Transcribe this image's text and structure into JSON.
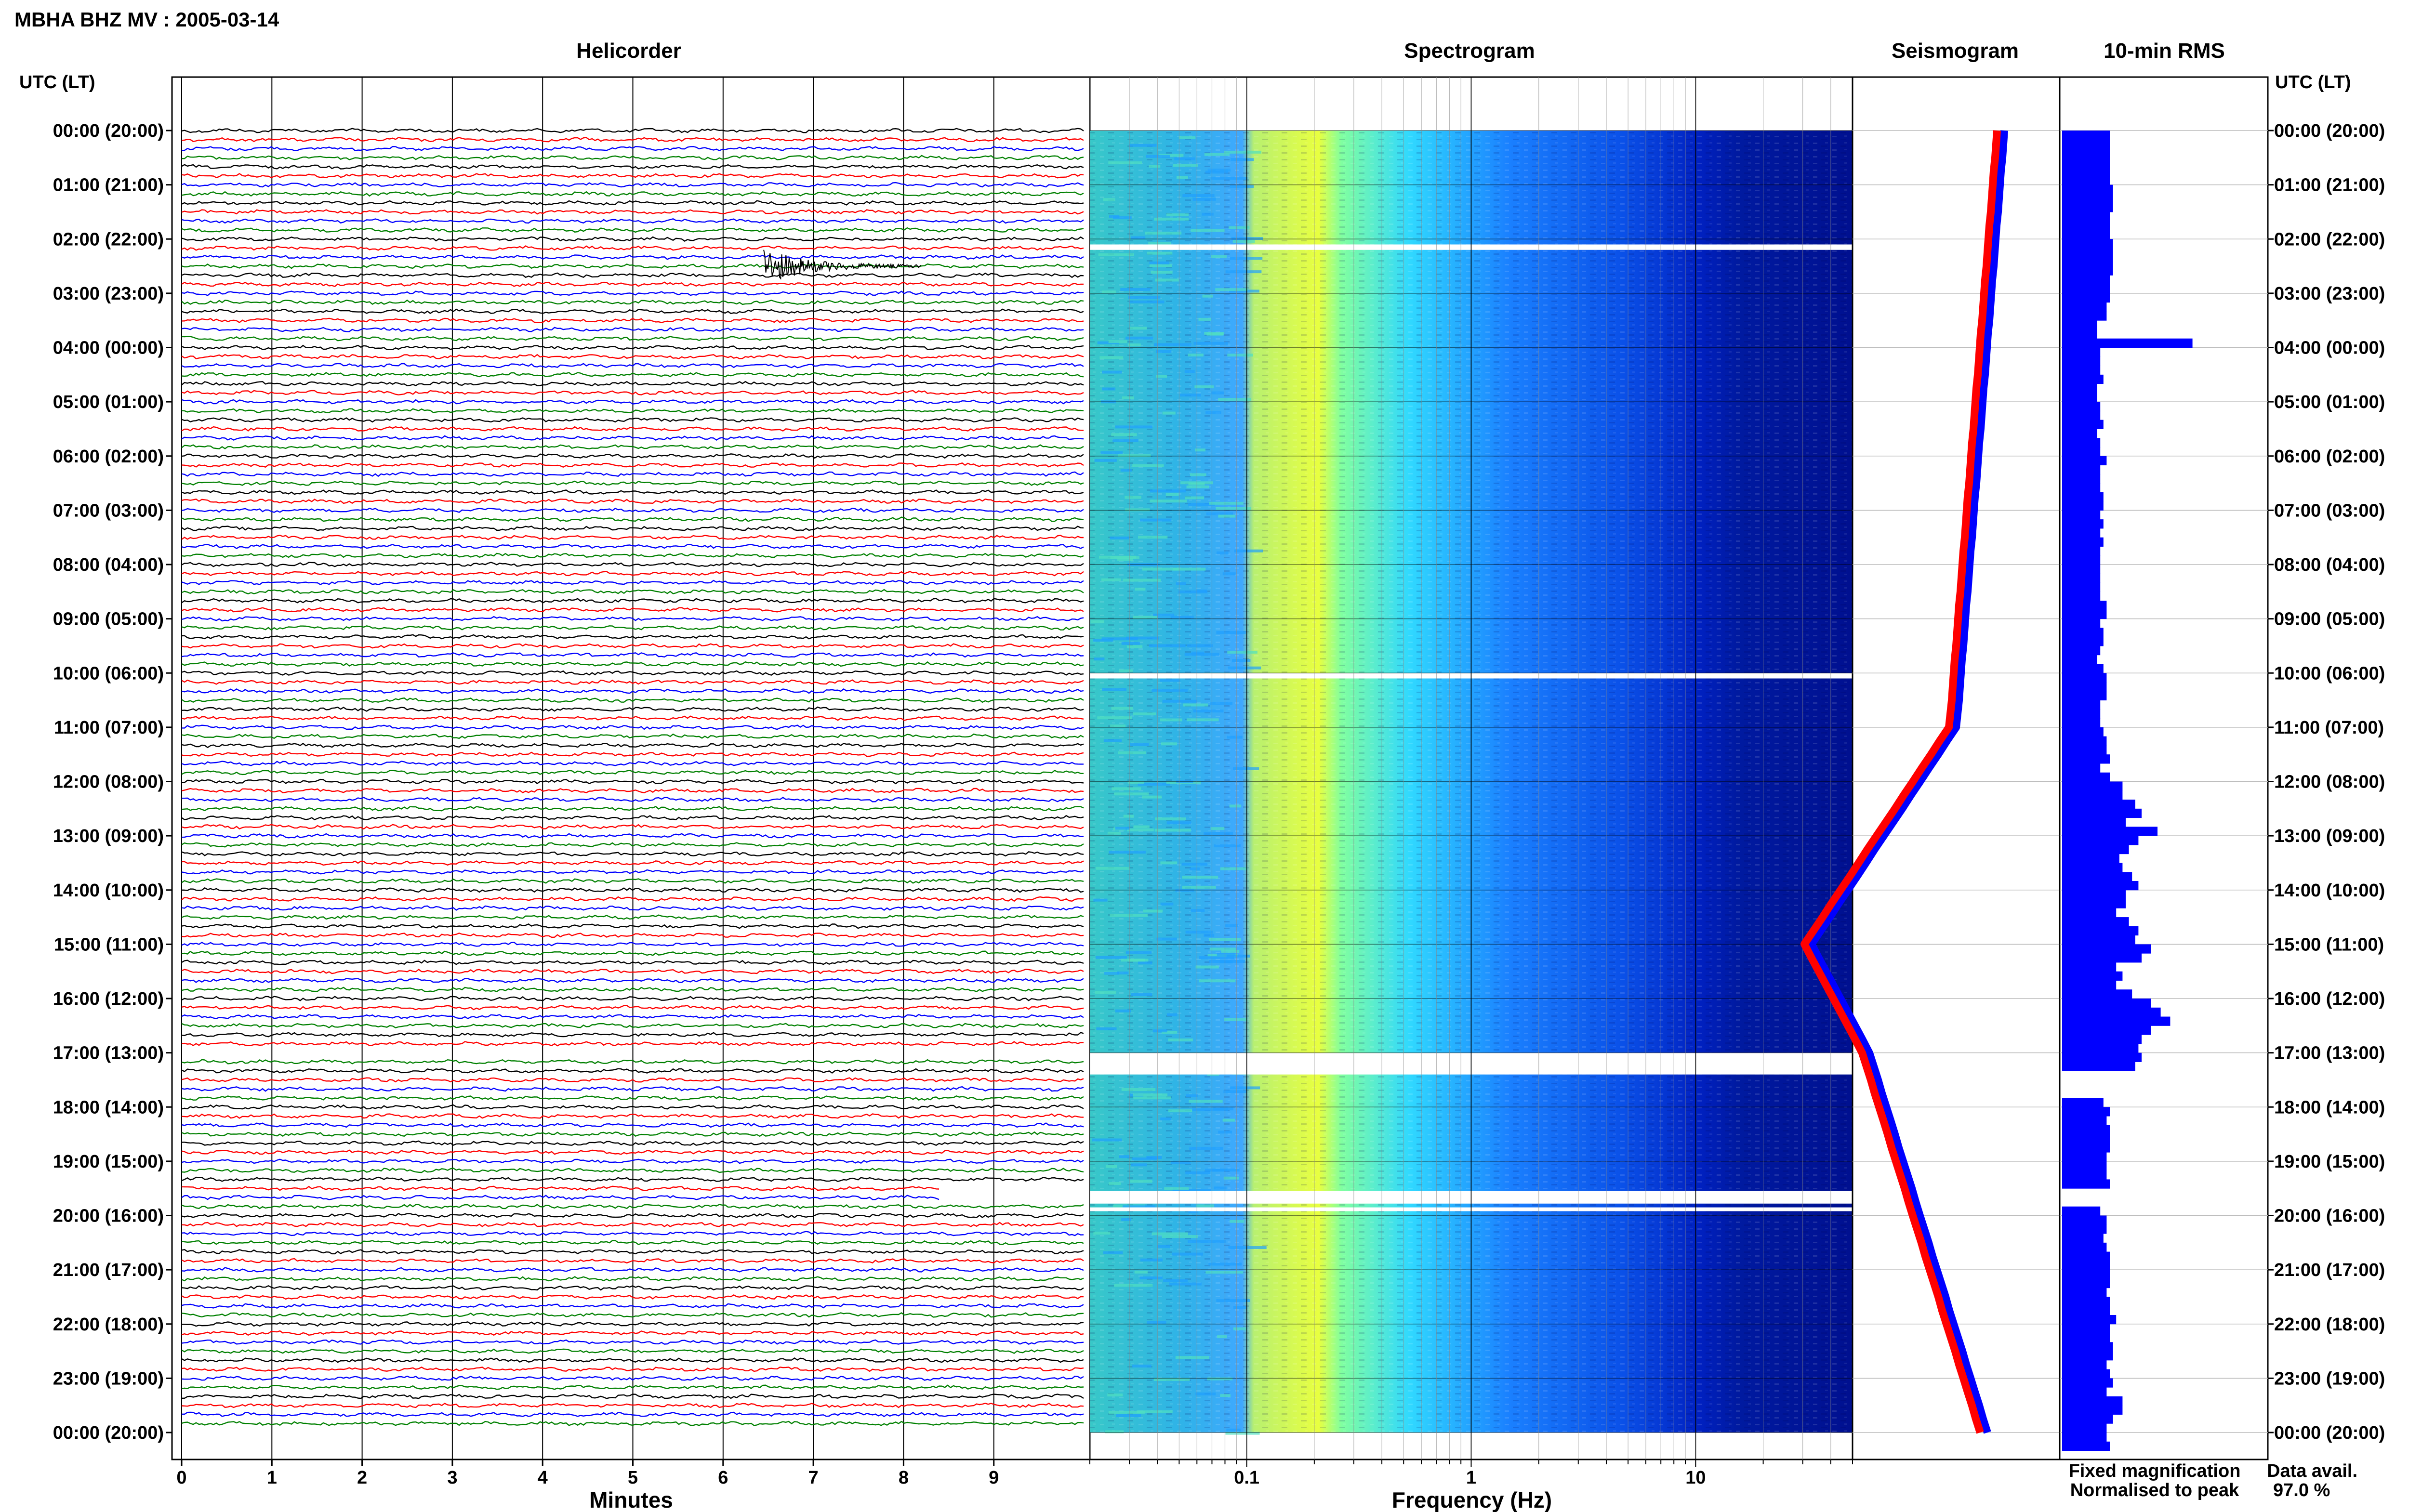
{
  "header": {
    "station_title": "MBHA BHZ MV : 2005-03-14"
  },
  "panels": {
    "helicorder": "Helicorder",
    "spectrogram": "Spectrogram",
    "seismogram": "Seismogram",
    "rms": "10-min RMS"
  },
  "axes": {
    "time_header_left": "UTC (LT)",
    "time_header_right": "UTC (LT)",
    "helicorder_xlabel": "Minutes",
    "spectrogram_xlabel": "Frequency (Hz)"
  },
  "legend": {
    "fixed": "Fixed magnification",
    "normalised": "Normalised to peak",
    "fixed_color": "#0000ff",
    "normalised_color": "#ff0000"
  },
  "data_availability": {
    "label": "Data avail.",
    "value": "97.0 %"
  },
  "chart_data": {
    "type": "helicorder-spectrogram",
    "time_labels": [
      "00:00 (20:00)",
      "01:00 (21:00)",
      "02:00 (22:00)",
      "03:00 (23:00)",
      "04:00 (00:00)",
      "05:00 (01:00)",
      "06:00 (02:00)",
      "07:00 (03:00)",
      "08:00 (04:00)",
      "09:00 (05:00)",
      "10:00 (06:00)",
      "11:00 (07:00)",
      "12:00 (08:00)",
      "13:00 (09:00)",
      "14:00 (10:00)",
      "15:00 (11:00)",
      "16:00 (12:00)",
      "17:00 (13:00)",
      "18:00 (14:00)",
      "19:00 (15:00)",
      "20:00 (16:00)",
      "21:00 (17:00)",
      "22:00 (18:00)",
      "23:00 (19:00)",
      "00:00 (20:00)"
    ],
    "helicorder": {
      "minute_ticks": [
        "0",
        "1",
        "2",
        "3",
        "4",
        "5",
        "6",
        "7",
        "8",
        "9"
      ],
      "trace_colors": [
        "#000000",
        "#ff0000",
        "#0000ff",
        "#008000"
      ],
      "events": [
        {
          "hour": 2.5,
          "minute_start": 6.45,
          "minute_end": 8.2,
          "amplitude": "large"
        }
      ]
    },
    "spectrogram": {
      "frequency_ticks": [
        "0.1",
        "1",
        "10"
      ],
      "freq_min": 0.02,
      "freq_max": 50,
      "log_scale": true,
      "colormap": [
        "#00008b",
        "#0000ff",
        "#0080ff",
        "#00e5ff",
        "#80ff80",
        "#ffff00"
      ],
      "gaps_hours": [
        [
          2.1,
          2.2
        ],
        [
          10.0,
          10.1
        ],
        [
          17.0,
          17.4
        ],
        [
          19.55,
          19.78
        ],
        [
          19.85,
          19.92
        ]
      ]
    },
    "seismogram": {
      "series": [
        {
          "name": "Fixed magnification",
          "color": "#0000ff"
        },
        {
          "name": "Normalised to peak",
          "color": "#ff0000"
        }
      ]
    },
    "rms_10min": {
      "values": [
        30,
        30,
        30,
        30,
        30,
        30,
        32,
        32,
        32,
        30,
        30,
        30,
        32,
        32,
        32,
        32,
        30,
        30,
        30,
        28,
        28,
        22,
        22,
        82,
        24,
        24,
        24,
        26,
        22,
        22,
        24,
        24,
        26,
        22,
        24,
        24,
        28,
        24,
        24,
        24,
        26,
        26,
        24,
        26,
        24,
        26,
        24,
        24,
        24,
        24,
        24,
        24,
        28,
        28,
        24,
        26,
        26,
        24,
        22,
        26,
        28,
        28,
        28,
        24,
        24,
        24,
        26,
        28,
        28,
        30,
        24,
        30,
        38,
        38,
        46,
        50,
        40,
        60,
        48,
        42,
        36,
        38,
        44,
        48,
        40,
        40,
        34,
        42,
        48,
        46,
        56,
        50,
        34,
        38,
        34,
        44,
        56,
        62,
        68,
        56,
        50,
        48,
        50,
        46,
        0,
        0,
        0,
        26,
        30,
        28,
        30,
        30,
        30,
        28,
        28,
        28,
        30,
        0,
        0,
        24,
        28,
        28,
        26,
        28,
        30,
        30,
        30,
        30,
        28,
        30,
        30,
        34,
        30,
        30,
        32,
        32,
        28,
        30,
        32,
        28,
        38,
        38,
        32,
        28,
        28,
        30
      ],
      "gap_after_hours": [
        17.0,
        19.5
      ]
    }
  }
}
